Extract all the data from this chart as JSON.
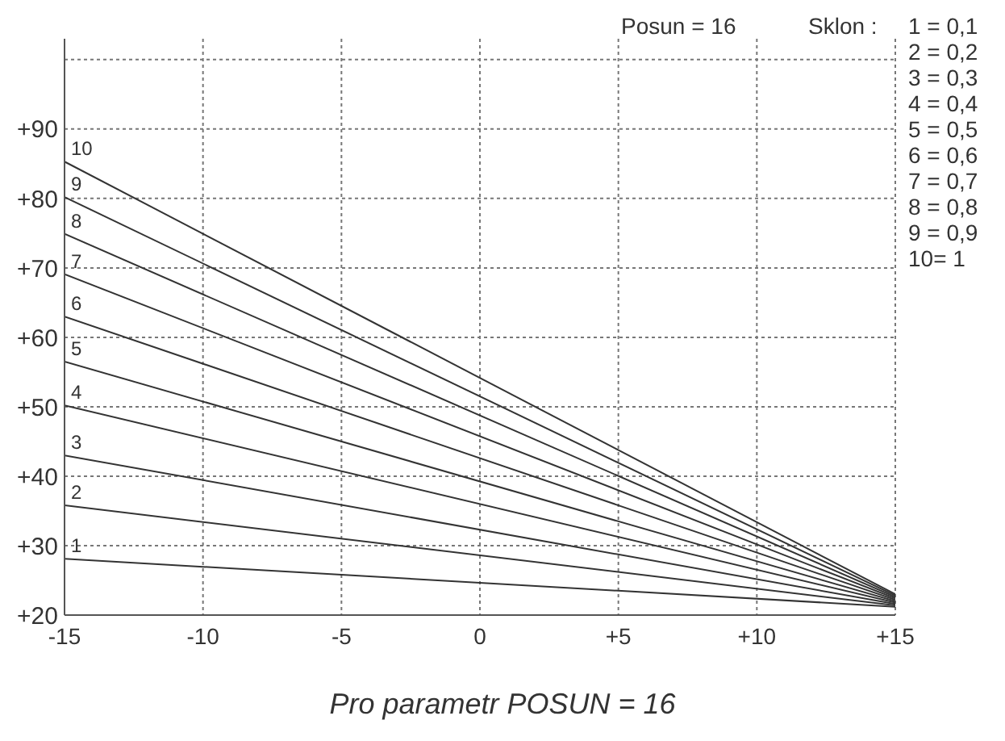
{
  "chart_data": {
    "type": "line",
    "title": "Pro parametr POSUN = 16",
    "x": [
      -15,
      15
    ],
    "series": [
      {
        "name": "1",
        "color": "#333333",
        "values": [
          28.1,
          21.2
        ]
      },
      {
        "name": "2",
        "color": "#333333",
        "values": [
          35.8,
          21.4
        ]
      },
      {
        "name": "3",
        "color": "#333333",
        "values": [
          43.0,
          21.6
        ]
      },
      {
        "name": "4",
        "color": "#333333",
        "values": [
          50.2,
          21.8
        ]
      },
      {
        "name": "5",
        "color": "#333333",
        "values": [
          56.5,
          22.0
        ]
      },
      {
        "name": "6",
        "color": "#333333",
        "values": [
          63.0,
          22.2
        ]
      },
      {
        "name": "7",
        "color": "#333333",
        "values": [
          69.1,
          22.4
        ]
      },
      {
        "name": "8",
        "color": "#333333",
        "values": [
          74.9,
          22.6
        ]
      },
      {
        "name": "9",
        "color": "#333333",
        "values": [
          80.2,
          22.8
        ]
      },
      {
        "name": "10",
        "color": "#333333",
        "values": [
          85.3,
          23.0
        ]
      }
    ],
    "xlim": [
      -15,
      15
    ],
    "xticks": [
      {
        "value": -15,
        "label": "-15"
      },
      {
        "value": -10,
        "label": "-10"
      },
      {
        "value": -5,
        "label": "-5"
      },
      0,
      {
        "value": 5,
        "label": "+5"
      },
      {
        "value": 10,
        "label": "+10"
      },
      {
        "value": 15,
        "label": "+15"
      }
    ],
    "ylim": [
      20,
      103
    ],
    "yticks": [
      {
        "value": 20,
        "label": "+20"
      },
      {
        "value": 30,
        "label": "+30"
      },
      {
        "value": 40,
        "label": "+40"
      },
      {
        "value": 50,
        "label": "+50"
      },
      {
        "value": 60,
        "label": "+60"
      },
      {
        "value": 70,
        "label": "+70"
      },
      {
        "value": 80,
        "label": "+80"
      },
      {
        "value": 90,
        "label": "+90"
      },
      {
        "value": 100,
        "label": null
      }
    ],
    "grid": true,
    "marker": "none",
    "line_style": "solid",
    "annotations": [
      "Posun = 16",
      "Sklon :",
      "1 = 0,1",
      "2 = 0,2",
      "3 = 0,3",
      "4 = 0,4",
      "5 = 0,5",
      "6 = 0,6",
      "7 = 0,7",
      "8 = 0,8",
      "9 = 0,9",
      "10= 1"
    ]
  }
}
